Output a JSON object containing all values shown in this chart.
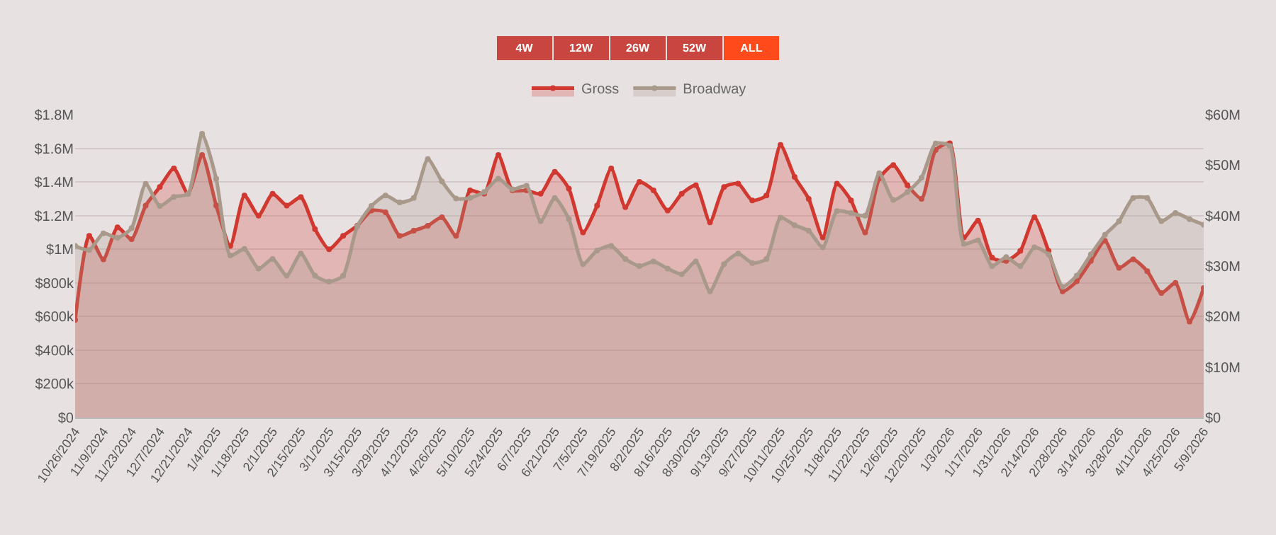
{
  "chart_data": {
    "type": "area",
    "categories": [
      "10/26/2024",
      null,
      "11/9/2024",
      null,
      "11/23/2024",
      null,
      "12/7/2024",
      null,
      "12/21/2024",
      null,
      "1/4/2025",
      null,
      "1/18/2025",
      null,
      "2/1/2025",
      null,
      "2/15/2025",
      null,
      "3/1/2025",
      null,
      "3/15/2025",
      null,
      "3/29/2025",
      null,
      "4/12/2025",
      null,
      "4/26/2025",
      null,
      "5/10/2025",
      null,
      "5/24/2025",
      null,
      "6/7/2025",
      null,
      "6/21/2025",
      null,
      "7/5/2025",
      null,
      "7/19/2025",
      null,
      "8/2/2025",
      null,
      "8/16/2025",
      null,
      "8/30/2025",
      null,
      "9/13/2025",
      null,
      "9/27/2025",
      null,
      "10/11/2025",
      null,
      "10/25/2025",
      null,
      "11/8/2025",
      null,
      "11/22/2025",
      null,
      "12/6/2025",
      null,
      "12/20/2025",
      null,
      "1/3/2026",
      null,
      "1/17/2026",
      null,
      "1/31/2026",
      null,
      "2/14/2026",
      null,
      "2/28/2026",
      null,
      "3/14/2026",
      null,
      "3/28/2026",
      null,
      "4/11/2026",
      null,
      "4/25/2026",
      null,
      "5/9/2026"
    ],
    "series": [
      {
        "name": "Gross",
        "color": "#d1382f",
        "values": [
          580000,
          1080000,
          940000,
          1130000,
          1060000,
          1260000,
          1370000,
          1480000,
          1330000,
          1560000,
          1260000,
          1020000,
          1320000,
          1200000,
          1330000,
          1260000,
          1310000,
          1120000,
          1000000,
          1080000,
          1140000,
          1230000,
          1220000,
          1080000,
          1110000,
          1140000,
          1190000,
          1080000,
          1350000,
          1330000,
          1560000,
          1350000,
          1350000,
          1330000,
          1460000,
          1360000,
          1100000,
          1260000,
          1480000,
          1250000,
          1400000,
          1350000,
          1230000,
          1330000,
          1380000,
          1160000,
          1370000,
          1390000,
          1290000,
          1320000,
          1620000,
          1430000,
          1300000,
          1070000,
          1390000,
          1290000,
          1100000,
          1420000,
          1500000,
          1380000,
          1300000,
          1590000,
          1630000,
          1070000,
          1170000,
          950000,
          930000,
          990000,
          1190000,
          990000,
          750000,
          810000,
          930000,
          1050000,
          890000,
          940000,
          870000,
          740000,
          800000,
          570000,
          770000
        ]
      },
      {
        "name": "Broadway",
        "color": "#a8998a",
        "axis": "y2",
        "values": [
          34000000,
          33200000,
          36500000,
          35600000,
          37500000,
          46300000,
          41900000,
          43700000,
          44300000,
          56200000,
          47300000,
          32100000,
          33400000,
          29500000,
          31400000,
          28100000,
          32500000,
          28100000,
          26900000,
          28100000,
          37900000,
          41900000,
          44000000,
          42600000,
          43500000,
          51200000,
          46800000,
          43400000,
          43500000,
          44700000,
          47300000,
          45200000,
          45900000,
          38900000,
          43500000,
          39300000,
          30400000,
          33100000,
          34000000,
          31400000,
          30000000,
          30900000,
          29500000,
          28400000,
          30900000,
          25000000,
          30400000,
          32500000,
          30600000,
          31400000,
          39600000,
          38100000,
          37000000,
          33700000,
          40900000,
          40500000,
          40000000,
          48400000,
          43100000,
          44700000,
          47500000,
          54300000,
          53800000,
          34400000,
          35100000,
          30000000,
          31800000,
          30000000,
          33700000,
          32300000,
          25900000,
          28100000,
          32300000,
          36200000,
          38900000,
          43500000,
          43500000,
          38900000,
          40500000,
          39300000,
          38200000
        ]
      }
    ],
    "ylim": [
      0,
      1800000
    ],
    "yticks": [
      {
        "value": 0,
        "label": "$0"
      },
      {
        "value": 200000,
        "label": "$200k"
      },
      {
        "value": 400000,
        "label": "$400k"
      },
      {
        "value": 600000,
        "label": "$600k"
      },
      {
        "value": 800000,
        "label": "$800k"
      },
      {
        "value": 1000000,
        "label": "$1M"
      },
      {
        "value": 1200000,
        "label": "$1.2M"
      },
      {
        "value": 1400000,
        "label": "$1.4M"
      },
      {
        "value": 1600000,
        "label": "$1.6M"
      },
      {
        "value": 1800000,
        "label": "$1.8M"
      }
    ],
    "y2lim": [
      0,
      60000000
    ],
    "y2ticks": [
      {
        "value": 0,
        "label": "$0"
      },
      {
        "value": 10000000,
        "label": "$10M"
      },
      {
        "value": 20000000,
        "label": "$20M"
      },
      {
        "value": 30000000,
        "label": "$30M"
      },
      {
        "value": 40000000,
        "label": "$40M"
      },
      {
        "value": 50000000,
        "label": "$50M"
      },
      {
        "value": 60000000,
        "label": "$60M"
      }
    ],
    "annotations": [
      "4W",
      "12W",
      "26W",
      "52W",
      "ALL"
    ],
    "grid": "y",
    "legend": "top",
    "marker": "circle",
    "line_style": "solid"
  }
}
